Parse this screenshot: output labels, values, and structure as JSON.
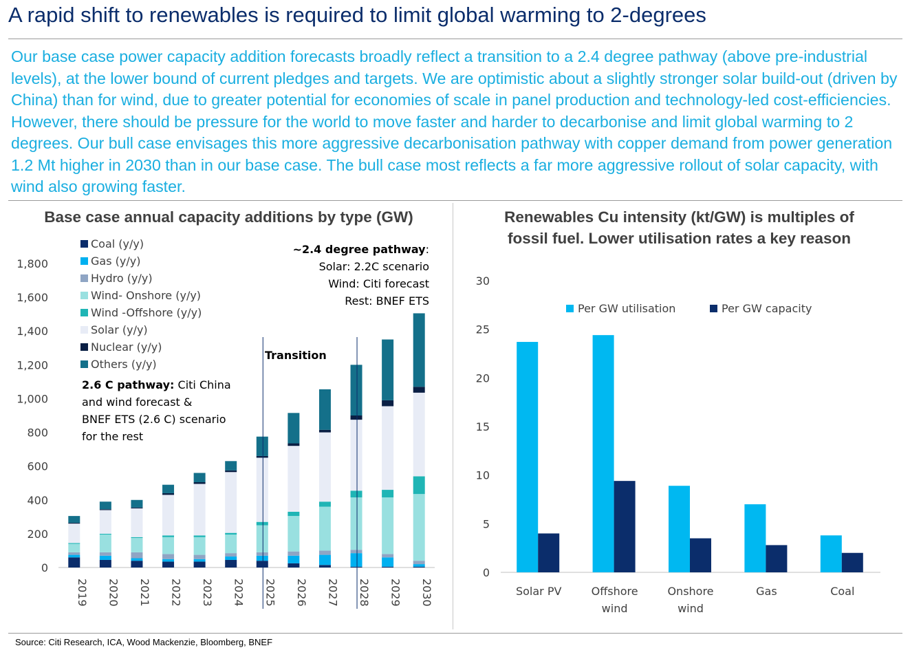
{
  "page": {
    "title": "A rapid shift to renewables is required to limit global warming to 2-degrees",
    "intro": "Our base case power capacity addition forecasts broadly reflect a transition to a 2.4 degree pathway (above pre-industrial levels), at the lower bound of current pledges and targets. We are optimistic about a slightly stronger solar build-out (driven by China) than for wind, due to greater potential for economies of scale in panel production and technology-led cost-efficiencies. However, there should be pressure for the world to move faster and harder to decarbonise and limit global warming to 2 degrees. Our bull case envisages this more aggressive decarbonisation pathway with copper demand from power generation 1.2 Mt higher in 2030 than in our base case. The bull case most reflects a far more aggressive rollout of solar capacity, with wind also growing faster.",
    "source": "Source: Citi Research, ICA, Wood Mackenzie, Bloomberg, BNEF"
  },
  "chart_data": [
    {
      "type": "bar",
      "stacked": true,
      "title": "Base case annual capacity additions by type (GW)",
      "categories": [
        "2019",
        "2020",
        "2021",
        "2022",
        "2023",
        "2024",
        "2025",
        "2026",
        "2027",
        "2028",
        "2029",
        "2030"
      ],
      "ylim": [
        0,
        1800
      ],
      "yticks": [
        "0",
        "200",
        "400",
        "600",
        "800",
        "1,000",
        "1,200",
        "1,400",
        "1,600",
        "1,800"
      ],
      "legend_position": "top-left",
      "series": [
        {
          "name": "Coal (y/y)",
          "color": "#0b2d6b",
          "values": [
            60,
            45,
            40,
            35,
            35,
            45,
            40,
            25,
            15,
            5,
            5,
            5
          ]
        },
        {
          "name": "Gas (y/y)",
          "color": "#00b0f0",
          "values": [
            15,
            25,
            15,
            15,
            15,
            20,
            30,
            45,
            60,
            80,
            55,
            15
          ]
        },
        {
          "name": "Hydro (y/y)",
          "color": "#8fa5c4",
          "values": [
            15,
            20,
            35,
            30,
            25,
            20,
            20,
            25,
            25,
            20,
            20,
            20
          ]
        },
        {
          "name": "Wind- Onshore (y/y)",
          "color": "#99e0e0",
          "values": [
            50,
            105,
            85,
            100,
            105,
            110,
            160,
            210,
            260,
            310,
            335,
            395
          ]
        },
        {
          "name": "Wind -Offshore (y/y)",
          "color": "#1fb5b5",
          "values": [
            5,
            5,
            5,
            10,
            10,
            10,
            20,
            25,
            30,
            40,
            45,
            105
          ]
        },
        {
          "name": "Solar (y/y)",
          "color": "#e8ecf6",
          "values": [
            115,
            140,
            170,
            240,
            305,
            360,
            380,
            390,
            410,
            420,
            495,
            495
          ]
        },
        {
          "name": "Nuclear (y/y)",
          "color": "#0a1f44",
          "values": [
            5,
            5,
            5,
            10,
            10,
            10,
            10,
            15,
            15,
            25,
            35,
            35
          ]
        },
        {
          "name": "Others (y/y)",
          "color": "#14708a",
          "values": [
            40,
            45,
            45,
            50,
            55,
            55,
            115,
            180,
            240,
            300,
            360,
            435
          ]
        }
      ],
      "annotations": [
        {
          "id": "base",
          "bold": "2.6 C pathway:",
          "lines": [
            " Citi China",
            "and wind forecast &",
            "BNEF ETS (2.6 C) scenario",
            "for the rest"
          ]
        },
        {
          "id": "transition",
          "bold": "Transition"
        },
        {
          "id": "pathway",
          "bold": "~2.4 degree pathway",
          "bold_suffix": ":",
          "lines": [
            "Solar: 2.2C scenario",
            "Wind:  Citi forecast",
            "Rest: BNEF ETS"
          ]
        }
      ]
    },
    {
      "type": "bar",
      "title": "Renewables Cu intensity (kt/GW) is multiples of fossil fuel. Lower utilisation rates a key reason",
      "title_lines": [
        "Renewables Cu intensity (kt/GW) is multiples of",
        "fossil fuel. Lower utilisation rates a key reason"
      ],
      "categories": [
        "Solar PV",
        "Offshore wind",
        "Onshore wind",
        "Gas",
        "Coal"
      ],
      "category_lines": [
        [
          "Solar PV"
        ],
        [
          "Offshore",
          "wind"
        ],
        [
          "Onshore",
          "wind"
        ],
        [
          "Gas"
        ],
        [
          "Coal"
        ]
      ],
      "ylim": [
        0,
        30
      ],
      "yticks": [
        "0",
        "5",
        "10",
        "15",
        "20",
        "25",
        "30"
      ],
      "legend_position": "top",
      "series": [
        {
          "name": "Per GW utilisation",
          "color": "#00b8f1",
          "values": [
            23.7,
            24.4,
            8.9,
            7.0,
            3.8
          ]
        },
        {
          "name": "Per GW capacity",
          "color": "#0b2d6b",
          "values": [
            4.0,
            9.4,
            3.5,
            2.8,
            2.0
          ]
        }
      ]
    }
  ]
}
